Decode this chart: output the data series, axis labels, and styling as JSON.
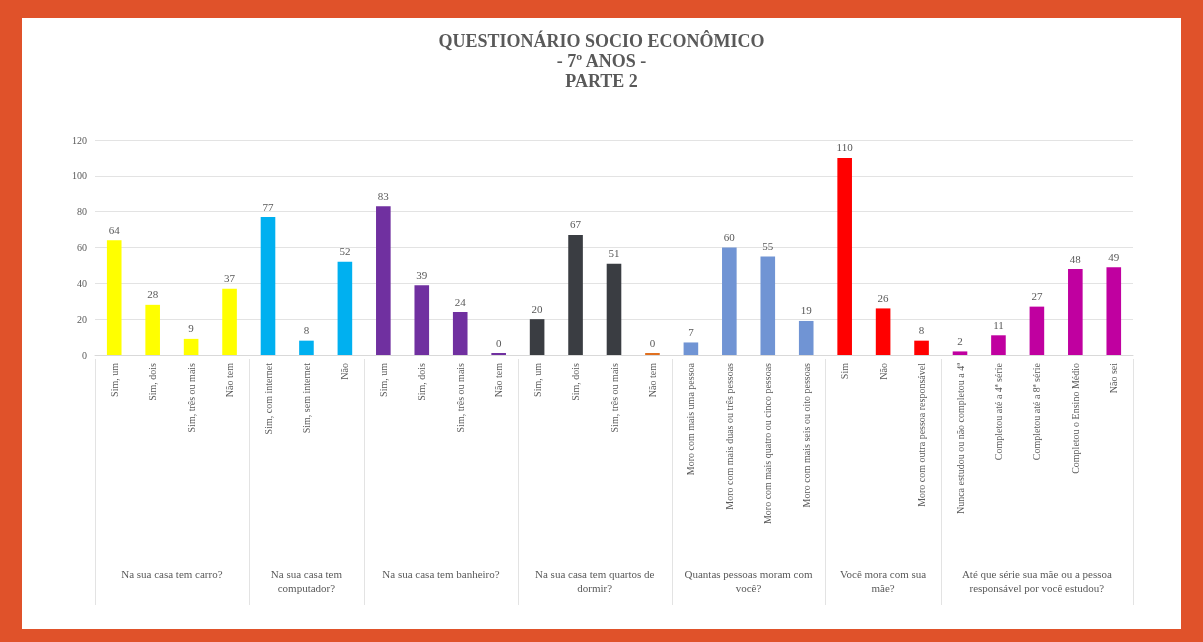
{
  "chart_data": {
    "type": "bar",
    "title": "QUESTIONÁRIO SOCIO ECONÔMICO\n- 7º ANOS -\nPARTE 2",
    "categories": [
      "Sim, um",
      "Sim, dois",
      "Sim, três ou mais",
      "Não tem",
      "Sim, com internet",
      "Sim, sem internet",
      "Não",
      "Sim, um",
      "Sim, dois",
      "Sim, três ou mais",
      "Não tem",
      "Sim, um",
      "Sim, dois",
      "Sim, três ou mais",
      "Não tem",
      "Moro com mais uma pessoa",
      "Moro com mais duas ou três pessoas",
      "Moro com mais quatro ou cinco pessoas",
      "Moro com mais seis ou oito pessoas",
      "Sim",
      "Não",
      "Moro com outra pessoa responsável",
      "Nunca estudou ou não completou a 4ª",
      "Completou até a 4ª série",
      "Completou até a 8ª série",
      "Completou o Ensino Médio",
      "Não sei"
    ],
    "stacked": true,
    "annotations": [
      "Na sua casa tem carro?",
      "Na sua casa tem computador?",
      "Na sua casa tem banheiro?",
      "Na sua casa tem quartos de dormir?",
      "Quantas pessoas moram com você?",
      "Você mora com sua mãe?",
      "Até que série sua mãe ou a pessoa responsável por você estudou?"
    ],
    "data_labels": true,
    "grid": "y",
    "ylim": [
      0,
      120
    ],
    "yticks": [
      0,
      20,
      40,
      60,
      80,
      100,
      120
    ],
    "series": [
      {
        "color": "#ffff00",
        "values": [
          64,
          28,
          9,
          37,
          null,
          null,
          null,
          null,
          null,
          null,
          null,
          null,
          null,
          null,
          null,
          null,
          null,
          null,
          null,
          null,
          null,
          null,
          null,
          null,
          null,
          null,
          null
        ]
      },
      {
        "color": "#00b0f0",
        "values": [
          null,
          null,
          null,
          null,
          77,
          8,
          52,
          null,
          null,
          null,
          null,
          null,
          null,
          null,
          null,
          null,
          null,
          null,
          null,
          null,
          null,
          null,
          null,
          null,
          null,
          null,
          null
        ]
      },
      {
        "color": "#7030a0",
        "values": [
          null,
          null,
          null,
          null,
          null,
          null,
          null,
          83,
          39,
          24,
          0,
          null,
          null,
          null,
          null,
          null,
          null,
          null,
          null,
          null,
          null,
          null,
          null,
          null,
          null,
          null,
          null
        ]
      },
      {
        "color": "#3a3d42",
        "colors": [
          null,
          null,
          null,
          null,
          null,
          null,
          null,
          null,
          null,
          null,
          null,
          "#3a3d42",
          "#3a3d42",
          "#3a3d42",
          "#e07020",
          null,
          null,
          null,
          null,
          null,
          null,
          null,
          null,
          null,
          null,
          null,
          null
        ],
        "values": [
          null,
          null,
          null,
          null,
          null,
          null,
          null,
          null,
          null,
          null,
          null,
          20,
          67,
          51,
          0,
          null,
          null,
          null,
          null,
          null,
          null,
          null,
          null,
          null,
          null,
          null,
          null
        ]
      },
      {
        "color": "#7094d4",
        "values": [
          null,
          null,
          null,
          null,
          null,
          null,
          null,
          null,
          null,
          null,
          null,
          null,
          null,
          null,
          null,
          7,
          60,
          55,
          19,
          null,
          null,
          null,
          null,
          null,
          null,
          null,
          null
        ]
      },
      {
        "color": "#ff0000",
        "values": [
          null,
          null,
          null,
          null,
          null,
          null,
          null,
          null,
          null,
          null,
          null,
          null,
          null,
          null,
          null,
          null,
          null,
          null,
          null,
          110,
          26,
          8,
          null,
          null,
          null,
          null,
          null
        ]
      },
      {
        "color": "#c000a0",
        "values": [
          null,
          null,
          null,
          null,
          null,
          null,
          null,
          null,
          null,
          null,
          null,
          null,
          null,
          null,
          null,
          null,
          null,
          null,
          null,
          null,
          null,
          null,
          2,
          11,
          27,
          48,
          49
        ]
      }
    ]
  }
}
